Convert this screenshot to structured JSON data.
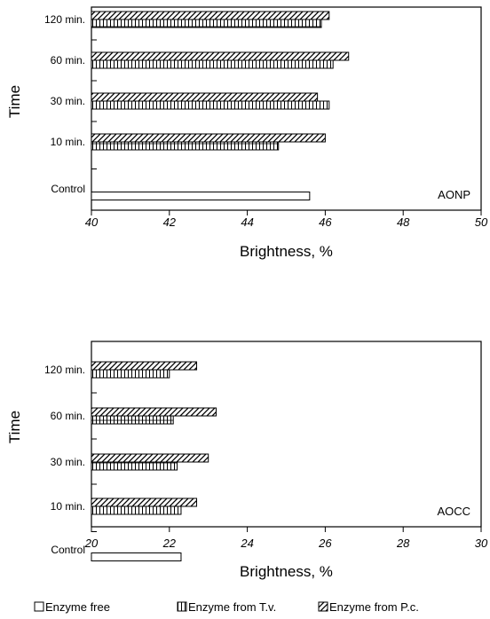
{
  "chart_data": [
    {
      "type": "bar",
      "orientation": "horizontal",
      "panel_label": "AONP",
      "xlabel": "Brightness, %",
      "ylabel": "Time",
      "xlim": [
        40,
        50
      ],
      "x_ticks": [
        40,
        42,
        44,
        46,
        48,
        50
      ],
      "categories": [
        "120 min.",
        "60 min.",
        "30 min.",
        "10 min.",
        "Control"
      ],
      "series": [
        {
          "name": "Enzyme free",
          "values": [
            null,
            null,
            null,
            null,
            45.6
          ]
        },
        {
          "name": "Enzyme from T.v.",
          "values": [
            45.9,
            46.2,
            46.1,
            44.8,
            null
          ]
        },
        {
          "name": "Enzyme from P.c.",
          "values": [
            46.1,
            46.6,
            45.8,
            46.0,
            null
          ]
        }
      ],
      "grid": false
    },
    {
      "type": "bar",
      "orientation": "horizontal",
      "panel_label": "AOCC",
      "xlabel": "Brightness, %",
      "ylabel": "Time",
      "xlim": [
        20,
        30
      ],
      "x_ticks": [
        20,
        22,
        24,
        26,
        28,
        30
      ],
      "categories": [
        "120 min.",
        "60 min.",
        "30 min.",
        "10 min.",
        "Control"
      ],
      "series": [
        {
          "name": "Enzyme free",
          "values": [
            null,
            null,
            null,
            null,
            22.3
          ]
        },
        {
          "name": "Enzyme from T.v.",
          "values": [
            22.0,
            22.1,
            22.2,
            22.3,
            null
          ]
        },
        {
          "name": "Enzyme from P.c.",
          "values": [
            22.7,
            23.2,
            23.0,
            22.7,
            null
          ]
        }
      ],
      "grid": false
    }
  ],
  "legend": {
    "position": "bottom",
    "items": [
      {
        "label": "Enzyme free",
        "pattern": "empty"
      },
      {
        "label": "Enzyme from T.v.",
        "pattern": "grid"
      },
      {
        "label": "Enzyme from P.c.",
        "pattern": "hatch"
      }
    ]
  }
}
